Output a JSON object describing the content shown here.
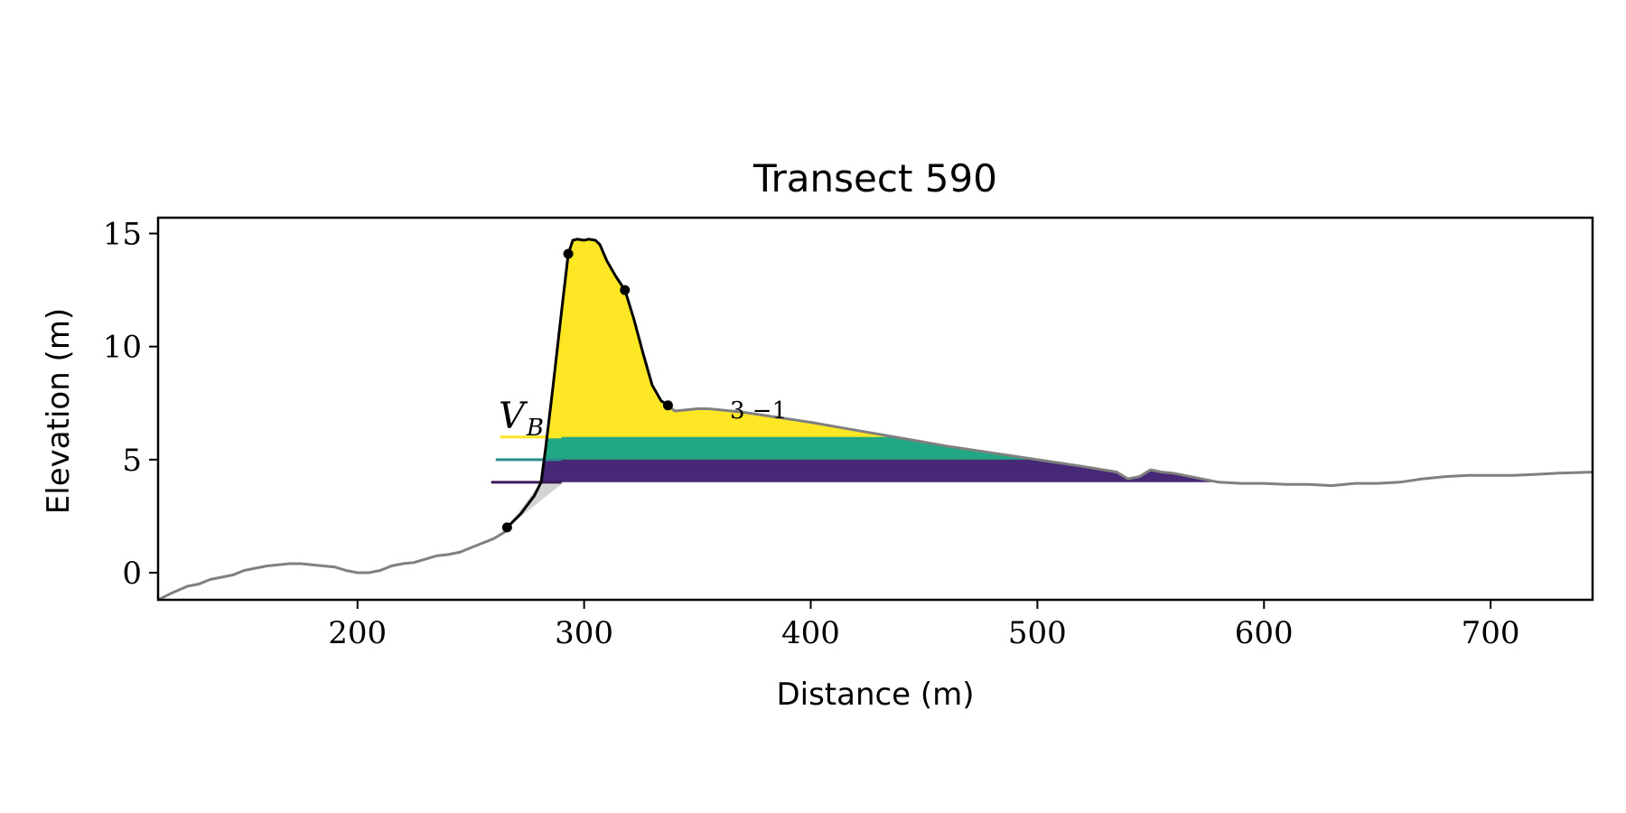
{
  "chart_data": {
    "type": "area",
    "title": "Transect 590",
    "xlabel": "Distance (m)",
    "ylabel": "Elevation (m)",
    "xlim": [
      112,
      745
    ],
    "ylim": [
      -1.2,
      15.7
    ],
    "xticks": [
      200,
      300,
      400,
      500,
      600,
      700
    ],
    "yticks": [
      0,
      5,
      10,
      15
    ],
    "grid": false,
    "legend": "none",
    "annotation": {
      "main": "V",
      "sub": "B",
      "partial": "3 −1"
    },
    "colors": {
      "profile": "#808080",
      "dune_outline": "#000000",
      "fill_top": "#fde725",
      "fill_mid": "#21a784",
      "fill_low": "#472877",
      "toe_shade": "#d3d3d3",
      "line_top": "#fde725",
      "line_mid": "#2a8f8a",
      "line_low": "#3e1a5a"
    },
    "threshold_levels": [
      6.0,
      5.0,
      4.0
    ],
    "profile": {
      "x": [
        112,
        118,
        125,
        130,
        135,
        140,
        145,
        150,
        155,
        160,
        165,
        170,
        175,
        180,
        185,
        190,
        195,
        200,
        205,
        210,
        215,
        220,
        225,
        230,
        235,
        240,
        245,
        250,
        255,
        260,
        265,
        270,
        280,
        290,
        300,
        310,
        320,
        330,
        337,
        340,
        345,
        350,
        355,
        360,
        365,
        370,
        380,
        400,
        420,
        440,
        460,
        480,
        500,
        520,
        535,
        540,
        545,
        550,
        555,
        560,
        570,
        580,
        590,
        600,
        610,
        620,
        630,
        640,
        650,
        660,
        670,
        680,
        690,
        700,
        710,
        720,
        730,
        745
      ],
      "y": [
        -1.2,
        -0.9,
        -0.6,
        -0.5,
        -0.3,
        -0.2,
        -0.1,
        0.1,
        0.2,
        0.3,
        0.35,
        0.4,
        0.4,
        0.35,
        0.3,
        0.25,
        0.1,
        0.0,
        0.0,
        0.1,
        0.3,
        0.4,
        0.45,
        0.6,
        0.75,
        0.8,
        0.9,
        1.1,
        1.3,
        1.5,
        1.8,
        2.3,
        3.4,
        4.6,
        5.6,
        6.4,
        7.0,
        7.3,
        7.4,
        7.15,
        7.2,
        7.25,
        7.25,
        7.2,
        7.15,
        7.1,
        6.95,
        6.65,
        6.3,
        5.95,
        5.6,
        5.3,
        5.0,
        4.7,
        4.45,
        4.15,
        4.25,
        4.55,
        4.45,
        4.4,
        4.2,
        4.0,
        3.95,
        3.95,
        3.9,
        3.9,
        3.85,
        3.95,
        3.95,
        4.0,
        4.15,
        4.25,
        4.3,
        4.3,
        4.3,
        4.35,
        4.4,
        4.45
      ]
    },
    "dune": {
      "x": [
        266,
        272,
        278,
        281,
        283,
        286,
        290,
        293,
        295,
        297,
        300,
        302,
        305,
        307,
        310,
        314,
        318,
        322,
        326,
        330,
        334,
        337
      ],
      "y": [
        2.0,
        2.6,
        3.4,
        4.0,
        5.5,
        8.0,
        11.5,
        14.1,
        14.7,
        14.75,
        14.7,
        14.75,
        14.7,
        14.5,
        13.8,
        13.1,
        12.5,
        11.2,
        9.7,
        8.3,
        7.6,
        7.4
      ]
    },
    "points": {
      "x": [
        266,
        293,
        318,
        337
      ],
      "y": [
        2.0,
        14.1,
        12.5,
        7.4
      ]
    }
  }
}
